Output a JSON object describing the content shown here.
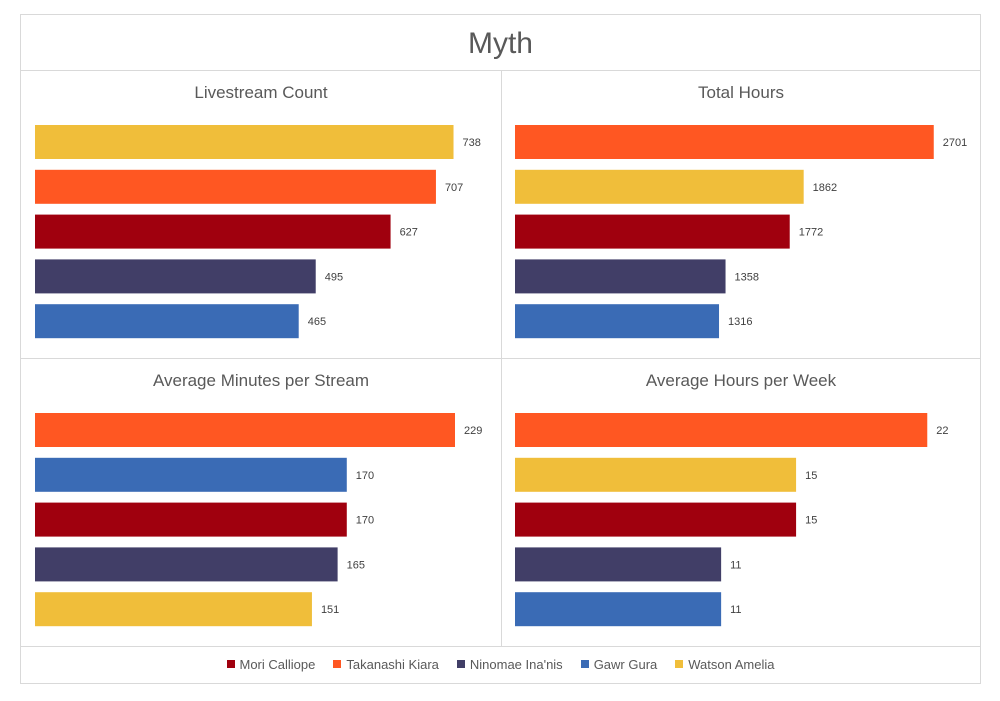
{
  "title": "Myth",
  "colors": {
    "Mori Calliope": "#a0000e",
    "Takanashi Kiara": "#ff5722",
    "Ninomae Ina'nis": "#413e67",
    "Gawr Gura": "#3a6bb5",
    "Watson Amelia": "#f0be3a"
  },
  "legend": [
    "Mori Calliope",
    "Takanashi Kiara",
    "Ninomae Ina'nis",
    "Gawr Gura",
    "Watson Amelia"
  ],
  "chart_data": [
    {
      "type": "bar",
      "orientation": "horizontal",
      "title": "Livestream Count",
      "categories": [
        "Watson Amelia",
        "Takanashi Kiara",
        "Mori Calliope",
        "Ninomae Ina'nis",
        "Gawr Gura"
      ],
      "values": [
        738,
        707,
        627,
        495,
        465
      ],
      "xlim": [
        0,
        760
      ]
    },
    {
      "type": "bar",
      "orientation": "horizontal",
      "title": "Total Hours",
      "categories": [
        "Takanashi Kiara",
        "Watson Amelia",
        "Mori Calliope",
        "Ninomae Ina'nis",
        "Gawr Gura"
      ],
      "values": [
        2701,
        1862,
        1772,
        1358,
        1316
      ],
      "xlim": [
        0,
        2780
      ]
    },
    {
      "type": "bar",
      "orientation": "horizontal",
      "title": "Average Minutes per Stream",
      "categories": [
        "Takanashi Kiara",
        "Gawr Gura",
        "Mori Calliope",
        "Ninomae Ina'nis",
        "Watson Amelia"
      ],
      "values": [
        229,
        170,
        170,
        165,
        151
      ],
      "xlim": [
        0,
        235
      ]
    },
    {
      "type": "bar",
      "orientation": "horizontal",
      "title": "Average Hours per Week",
      "categories": [
        "Takanashi Kiara",
        "Watson Amelia",
        "Mori Calliope",
        "Ninomae Ina'nis",
        "Gawr Gura"
      ],
      "values": [
        22,
        15,
        15,
        11,
        11
      ],
      "xlim": [
        0,
        23
      ]
    }
  ]
}
